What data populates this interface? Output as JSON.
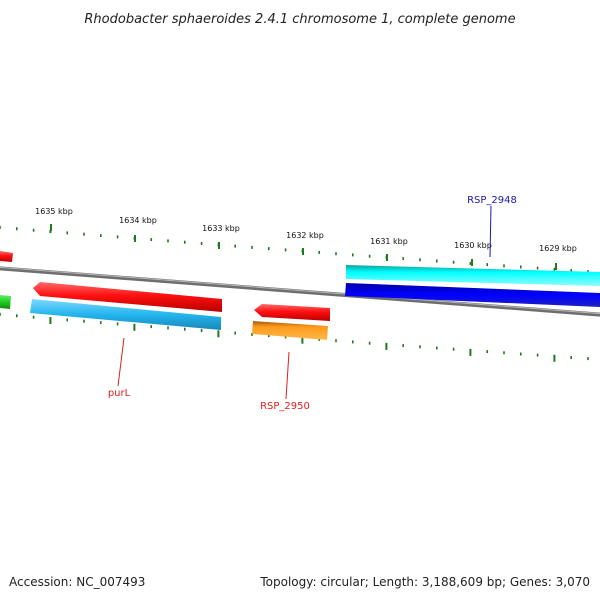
{
  "title": "Rhodobacter sphaeroides 2.4.1 chromosome 1, complete genome",
  "footer": {
    "accession": "Accession: NC_007493",
    "summary": "Topology: circular; Length: 3,188,609 bp; Genes: 3,070"
  },
  "ticks": [
    {
      "label": "1635 kbp"
    },
    {
      "label": "1634 kbp"
    },
    {
      "label": "1633 kbp"
    },
    {
      "label": "1632 kbp"
    },
    {
      "label": "1631 kbp"
    },
    {
      "label": "1630 kbp"
    },
    {
      "label": "1629 kbp"
    }
  ],
  "genes": [
    {
      "name": "purL",
      "color": "#e11d1d"
    },
    {
      "name": "RSP_2950",
      "color": "#e11d1d"
    },
    {
      "name": "RSP_2948",
      "color": "#1a1aa8"
    }
  ],
  "colors": {
    "backbone": "#808080",
    "ticks": "#1f7a1f",
    "red_feature": "#ff1010",
    "sky_feature": "#22b5ee",
    "orange_feature": "#ff8c00",
    "cyan_feature": "#00ffff",
    "blue_feature": "#0000ee",
    "green_feature": "#22cc22"
  }
}
